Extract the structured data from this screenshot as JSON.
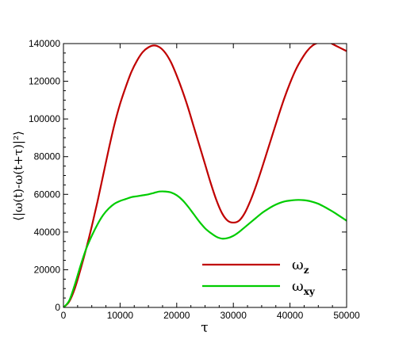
{
  "chart_data": {
    "type": "line",
    "xlabel": "τ",
    "ylabel": "⟨|ω(t)-ω(t+τ)|²⟩",
    "xlim": [
      0,
      50000
    ],
    "ylim": [
      0,
      140000
    ],
    "xticks": [
      0,
      10000,
      20000,
      30000,
      40000,
      50000
    ],
    "yticks": [
      0,
      20000,
      40000,
      60000,
      80000,
      100000,
      120000,
      140000
    ],
    "grid": false,
    "legend_position": "bottom-right",
    "series": [
      {
        "name": "ω",
        "subscript": "z",
        "color": "#c00000",
        "x": [
          0,
          1000,
          2000,
          3000,
          4000,
          5000,
          6000,
          7000,
          8000,
          9000,
          10000,
          11000,
          12000,
          13000,
          14000,
          15000,
          16000,
          17000,
          18000,
          19000,
          20000,
          21000,
          22000,
          23000,
          24000,
          25000,
          26000,
          27000,
          28000,
          29000,
          30000,
          31000,
          32000,
          33000,
          34000,
          35000,
          36000,
          37000,
          38000,
          39000,
          40000,
          41000,
          42000,
          43000,
          44000,
          45000,
          46000,
          47000,
          48000,
          49000,
          50000
        ],
        "y": [
          0,
          3000,
          10000,
          20000,
          31000,
          43000,
          56000,
          70000,
          84000,
          97000,
          108000,
          117000,
          125000,
          131000,
          135500,
          138000,
          139000,
          138000,
          135000,
          130000,
          123000,
          115000,
          106000,
          96000,
          86000,
          76000,
          66000,
          57000,
          50000,
          46000,
          45000,
          46000,
          50000,
          56500,
          64500,
          73500,
          83000,
          92500,
          102000,
          111000,
          119000,
          126000,
          131500,
          136000,
          139000,
          140500,
          141000,
          140500,
          139000,
          137500,
          136000
        ]
      },
      {
        "name": "ω",
        "subscript": "xy",
        "color": "#00cc00",
        "x": [
          0,
          1000,
          2000,
          3000,
          4000,
          5000,
          6000,
          7000,
          8000,
          9000,
          10000,
          11000,
          12000,
          13000,
          14000,
          15000,
          16000,
          17000,
          18000,
          19000,
          20000,
          21000,
          22000,
          23000,
          24000,
          25000,
          26000,
          27000,
          28000,
          29000,
          30000,
          31000,
          32000,
          33000,
          34000,
          35000,
          36000,
          37000,
          38000,
          39000,
          40000,
          41000,
          42000,
          43000,
          44000,
          45000,
          46000,
          47000,
          48000,
          49000,
          50000
        ],
        "y": [
          0,
          3500,
          12000,
          22000,
          31000,
          38000,
          44000,
          49000,
          52500,
          55000,
          56500,
          57500,
          58500,
          59000,
          59500,
          60000,
          60800,
          61500,
          61500,
          61000,
          59500,
          57000,
          53500,
          49500,
          45500,
          42000,
          39500,
          37500,
          36500,
          36800,
          38000,
          40000,
          42500,
          45000,
          47500,
          50000,
          52000,
          53800,
          55200,
          56200,
          56700,
          57000,
          57000,
          56700,
          56000,
          55000,
          53500,
          51800,
          50000,
          48000,
          46000
        ]
      }
    ]
  }
}
